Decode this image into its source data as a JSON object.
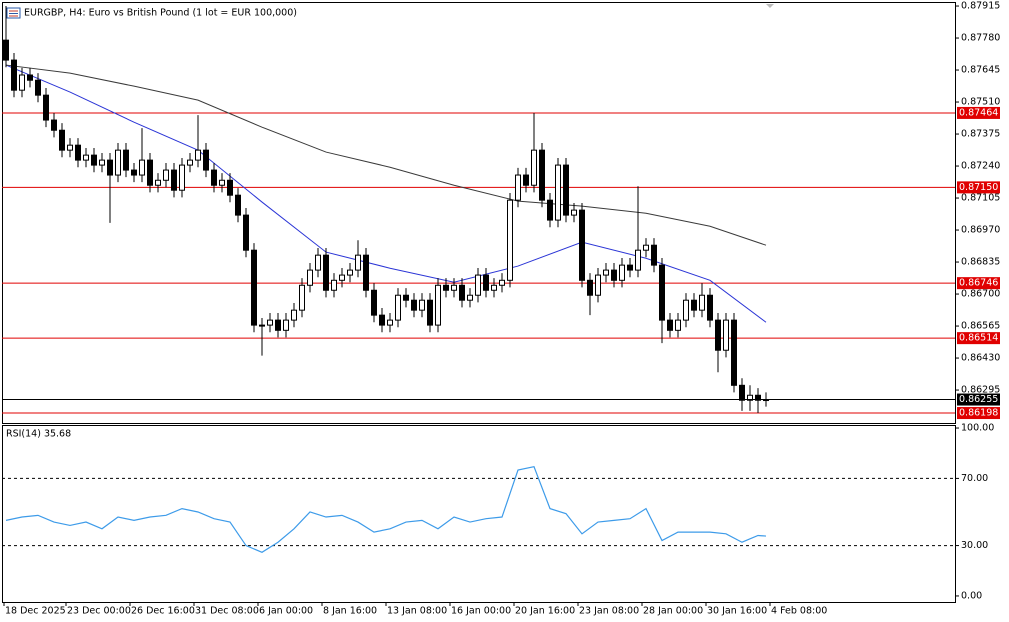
{
  "chart_data": [
    {
      "type": "candlestick",
      "title": "EURGBP, H4:  Euro vs British Pound (1 lot = EUR 100,000)",
      "xlim": [
        -0.5,
        118.625
      ],
      "xticks": [
        {
          "value": -0.25,
          "label": "18 Dec 2025"
        },
        {
          "value": 7.5,
          "label": "23 Dec 00:00"
        },
        {
          "value": 15.5,
          "label": "26 Dec 16:00"
        },
        {
          "value": 23.5,
          "label": "31 Dec 08:00"
        },
        {
          "value": 31.5,
          "label": "6 Jan 00:00"
        },
        {
          "value": 39.5,
          "label": "8 Jan 16:00"
        },
        {
          "value": 47.5,
          "label": "13 Jan 08:00"
        },
        {
          "value": 55.5,
          "label": "16 Jan 00:00"
        },
        {
          "value": 63.5,
          "label": "20 Jan 16:00"
        },
        {
          "value": 71.5,
          "label": "23 Jan 08:00"
        },
        {
          "value": 79.5,
          "label": "28 Jan 00:00"
        },
        {
          "value": 87.5,
          "label": "30 Jan 16:00"
        },
        {
          "value": 95.5,
          "label": "4 Feb 08:00"
        }
      ],
      "ylim": [
        0.86156,
        0.87932
      ],
      "yticks": [
        0.87915,
        {
          "value": 0.8778,
          "label": "0.87780"
        },
        0.87645,
        {
          "value": 0.8751,
          "label": "0.87510"
        },
        0.87375,
        {
          "value": 0.8724,
          "label": "0.87240"
        },
        0.87105,
        {
          "value": 0.8697,
          "label": "0.86970"
        },
        0.86835,
        {
          "value": 0.867,
          "label": "0.86700"
        },
        0.86565,
        {
          "value": 0.8643,
          "label": "0.86430"
        },
        0.86295
      ],
      "levels": [
        0.87464,
        {
          "value": 0.8715,
          "label": "0.87150"
        },
        0.86746,
        0.86514,
        0.86198
      ],
      "level_color": "#e00000",
      "current_price": 0.86255,
      "color": "#000000",
      "open": [
        0.87771,
        0.87687,
        0.8756,
        0.87624,
        0.87602,
        0.87539,
        0.87434,
        0.87391,
        0.87307,
        0.87328,
        0.87265,
        0.87286,
        0.87244,
        0.87265,
        0.87202,
        0.87307,
        0.87223,
        0.87202,
        0.87265,
        0.87159,
        0.8718,
        0.87223,
        0.87138,
        0.87244,
        0.87265,
        0.87307,
        0.87223,
        0.87159,
        0.8718,
        0.87117,
        0.87033,
        0.86885,
        0.86569,
        0.86569,
        0.8659,
        0.86547,
        0.8659,
        0.86632,
        0.86737,
        0.86801,
        0.86864,
        0.86716,
        0.86758,
        0.8678,
        0.86801,
        0.86864,
        0.86716,
        0.86611,
        0.86569,
        0.8659,
        0.86695,
        0.86674,
        0.86632,
        0.86674,
        0.86569,
        0.86737,
        0.86716,
        0.86737,
        0.86674,
        0.86695,
        0.8678,
        0.86716,
        0.86737,
        0.86758,
        0.87096,
        0.87202,
        0.87159,
        0.87307,
        0.87096,
        0.87012,
        0.87244,
        0.87033,
        0.87054,
        0.86758,
        0.86695,
        0.8678,
        0.86801,
        0.86758,
        0.86822,
        0.86801,
        0.86885,
        0.86906,
        0.86822,
        0.8659,
        0.86547,
        0.8659,
        0.86674,
        0.86632,
        0.86695,
        0.8659,
        0.86463,
        0.8659,
        0.86315,
        0.86252,
        0.86273,
        0.86252
      ],
      "high": [
        0.87915,
        0.87717,
        0.87654,
        0.87654,
        0.87632,
        0.87569,
        0.87464,
        0.87421,
        0.87358,
        0.87358,
        0.87316,
        0.87316,
        0.87295,
        0.87295,
        0.87337,
        0.87337,
        0.87253,
        0.874,
        0.87295,
        0.8721,
        0.87253,
        0.87253,
        0.87274,
        0.87295,
        0.87455,
        0.87337,
        0.87253,
        0.8721,
        0.8721,
        0.87147,
        0.87063,
        0.86915,
        0.86599,
        0.8662,
        0.8662,
        0.8662,
        0.86662,
        0.86767,
        0.86831,
        0.86894,
        0.86894,
        0.86788,
        0.8681,
        0.86831,
        0.86927,
        0.86894,
        0.86746,
        0.86641,
        0.8662,
        0.86725,
        0.86725,
        0.86704,
        0.86704,
        0.86704,
        0.86767,
        0.86767,
        0.86767,
        0.86767,
        0.86725,
        0.8681,
        0.8681,
        0.86767,
        0.86788,
        0.87126,
        0.87232,
        0.87232,
        0.87464,
        0.87337,
        0.87126,
        0.87274,
        0.87274,
        0.87084,
        0.87084,
        0.86788,
        0.8681,
        0.86831,
        0.86831,
        0.86852,
        0.86852,
        0.87155,
        0.86936,
        0.86936,
        0.86852,
        0.8662,
        0.8662,
        0.86704,
        0.86704,
        0.86746,
        0.86725,
        0.8662,
        0.8662,
        0.8662,
        0.86345,
        0.86315,
        0.86303,
        0.86285
      ],
      "low": [
        0.87657,
        0.8753,
        0.8753,
        0.87572,
        0.87509,
        0.87404,
        0.87361,
        0.87277,
        0.87277,
        0.87235,
        0.87235,
        0.87214,
        0.87214,
        0.87,
        0.87172,
        0.87193,
        0.87172,
        0.87172,
        0.87129,
        0.87129,
        0.8715,
        0.87108,
        0.87108,
        0.87214,
        0.87235,
        0.87193,
        0.87129,
        0.87129,
        0.87087,
        0.87003,
        0.86855,
        0.86539,
        0.8644,
        0.86539,
        0.86517,
        0.86517,
        0.8656,
        0.86602,
        0.86707,
        0.86771,
        0.86686,
        0.86686,
        0.86728,
        0.8675,
        0.86771,
        0.86686,
        0.86581,
        0.86539,
        0.86539,
        0.8656,
        0.86644,
        0.86602,
        0.86602,
        0.86539,
        0.86539,
        0.86686,
        0.86686,
        0.86644,
        0.86644,
        0.86665,
        0.86686,
        0.86686,
        0.86707,
        0.86728,
        0.87066,
        0.87129,
        0.87129,
        0.87066,
        0.86982,
        0.86982,
        0.87003,
        0.87003,
        0.86728,
        0.86611,
        0.86665,
        0.8675,
        0.86728,
        0.86728,
        0.86771,
        0.86771,
        0.86855,
        0.86792,
        0.86493,
        0.86517,
        0.86517,
        0.8656,
        0.86602,
        0.86602,
        0.8656,
        0.8637,
        0.86433,
        0.86285,
        0.86207,
        0.86207,
        0.86198,
        0.86225
      ],
      "close": [
        0.87687,
        0.8756,
        0.87624,
        0.87602,
        0.87539,
        0.87434,
        0.87391,
        0.87307,
        0.87328,
        0.87265,
        0.87286,
        0.87244,
        0.87265,
        0.87202,
        0.87307,
        0.87223,
        0.87202,
        0.87265,
        0.87159,
        0.8718,
        0.87223,
        0.87138,
        0.87244,
        0.87265,
        0.87307,
        0.87223,
        0.87159,
        0.8718,
        0.87117,
        0.87033,
        0.86885,
        0.86569,
        0.86569,
        0.8659,
        0.86547,
        0.8659,
        0.86632,
        0.86737,
        0.86801,
        0.86864,
        0.86716,
        0.86758,
        0.8678,
        0.86801,
        0.86864,
        0.86716,
        0.86611,
        0.86569,
        0.8659,
        0.86695,
        0.86674,
        0.86632,
        0.86674,
        0.86569,
        0.86737,
        0.86716,
        0.86737,
        0.86674,
        0.86695,
        0.8678,
        0.86716,
        0.86737,
        0.86758,
        0.87096,
        0.87202,
        0.87159,
        0.87307,
        0.87096,
        0.87012,
        0.87244,
        0.87033,
        0.87054,
        0.86758,
        0.86695,
        0.8678,
        0.86801,
        0.86758,
        0.86822,
        0.86801,
        0.86885,
        0.86906,
        0.86822,
        0.8659,
        0.86547,
        0.8659,
        0.86674,
        0.86632,
        0.86695,
        0.8659,
        0.86463,
        0.8659,
        0.86315,
        0.86252,
        0.86273,
        0.86252,
        0.86255
      ],
      "lines": [
        {
          "color": "#2b35d6",
          "x": [
            0,
            8,
            16,
            24,
            32,
            40,
            48,
            56,
            64,
            72,
            80,
            88,
            95
          ],
          "values": [
            0.87666,
            0.87552,
            0.87425,
            0.87307,
            0.87088,
            0.86877,
            0.86809,
            0.8675,
            0.86818,
            0.86919,
            0.86851,
            0.86758,
            0.86581
          ]
        },
        {
          "color": "#3a3a3a",
          "x": [
            0,
            8,
            16,
            24,
            32,
            40,
            48,
            56,
            64,
            72,
            80,
            88,
            95
          ],
          "values": [
            0.87666,
            0.87632,
            0.87577,
            0.87518,
            0.87404,
            0.87299,
            0.87235,
            0.87159,
            0.87092,
            0.87071,
            0.87041,
            0.86986,
            0.86906
          ]
        }
      ]
    },
    {
      "type": "line",
      "title": "RSI(14) 35.68",
      "color": "#3d9be9",
      "xlim": [
        -0.5,
        118.625
      ],
      "ylim": [
        -3.6,
        101.8
      ],
      "yticks": [
        {
          "value": 100,
          "label": "100.00"
        },
        {
          "value": 70,
          "label": "70.00"
        },
        {
          "value": 30,
          "label": "30.00"
        },
        {
          "value": 0,
          "label": "0.00"
        }
      ],
      "dashed_levels": [
        70,
        30
      ],
      "x": [
        0,
        2,
        4,
        6,
        8,
        10,
        12,
        14,
        16,
        18,
        20,
        22,
        24,
        26,
        28,
        30,
        32,
        34,
        36,
        38,
        40,
        42,
        44,
        46,
        48,
        50,
        52,
        54,
        56,
        58,
        60,
        62,
        64,
        66,
        68,
        70,
        72,
        74,
        76,
        78,
        80,
        82,
        84,
        86,
        88,
        90,
        92,
        94,
        95
      ],
      "values": [
        45,
        47,
        48,
        44,
        42,
        44,
        40,
        47,
        45,
        47,
        48,
        52,
        50,
        46,
        44,
        30,
        26,
        32,
        40,
        50,
        47,
        48,
        44,
        38,
        40,
        44,
        45,
        40,
        47,
        44,
        46,
        47,
        75,
        77,
        52,
        49,
        37,
        44,
        45,
        46,
        52,
        33,
        38,
        38,
        38,
        37,
        32,
        36,
        35.68
      ]
    }
  ]
}
